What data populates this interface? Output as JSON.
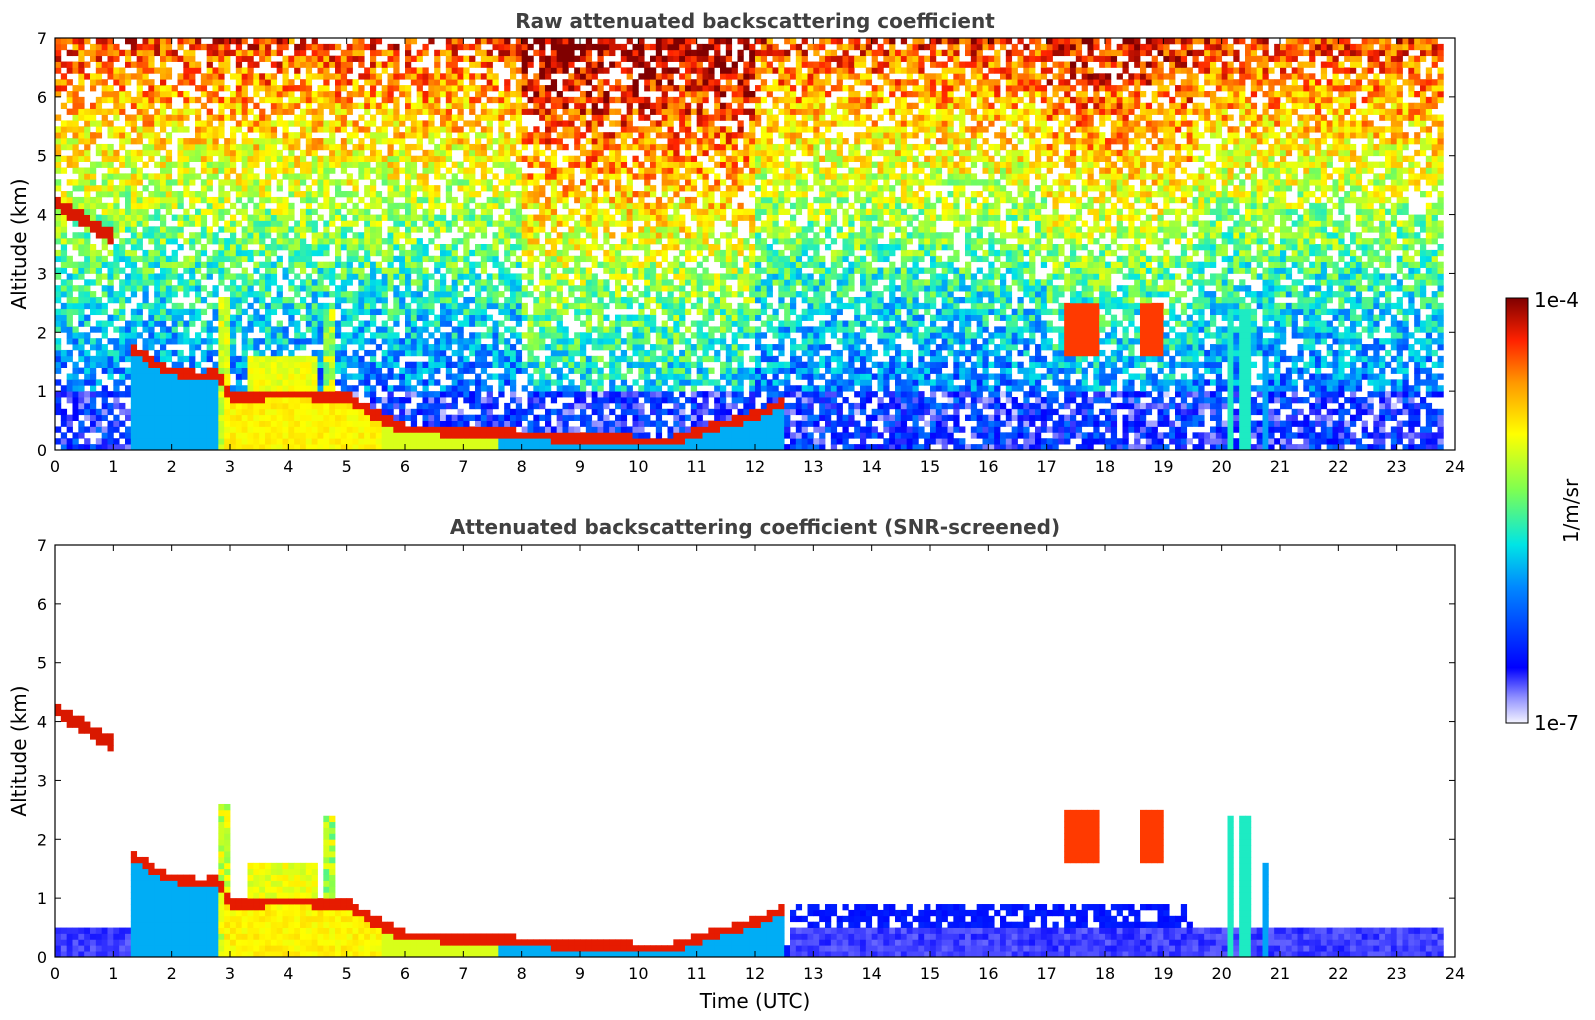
{
  "chart_data": [
    {
      "type": "heatmap",
      "title": "Raw attenuated backscattering coefficient",
      "ylabel": "Altitude (km)",
      "xlabel": "",
      "xlim": [
        0,
        24
      ],
      "ylim": [
        0,
        7
      ],
      "x_ticks": [
        0,
        1,
        2,
        3,
        4,
        5,
        6,
        7,
        8,
        9,
        10,
        11,
        12,
        13,
        14,
        15,
        16,
        17,
        18,
        19,
        20,
        21,
        22,
        23,
        24
      ],
      "y_ticks": [
        0,
        1,
        2,
        3,
        4,
        5,
        6,
        7
      ],
      "grid": false,
      "screened": false
    },
    {
      "type": "heatmap",
      "title": "Attenuated backscattering coefficient (SNR-screened)",
      "ylabel": "Altitude (km)",
      "xlabel": "Time (UTC)",
      "xlim": [
        0,
        24
      ],
      "ylim": [
        0,
        7
      ],
      "x_ticks": [
        0,
        1,
        2,
        3,
        4,
        5,
        6,
        7,
        8,
        9,
        10,
        11,
        12,
        13,
        14,
        15,
        16,
        17,
        18,
        19,
        20,
        21,
        22,
        23,
        24
      ],
      "y_ticks": [
        0,
        1,
        2,
        3,
        4,
        5,
        6,
        7
      ],
      "grid": false,
      "screened": true
    }
  ],
  "colorbar": {
    "label": "1/m/sr",
    "min_label": "1e-7",
    "max_label": "1e-4",
    "scale": "log",
    "colormap": [
      "#f4f4ff",
      "#0000ff",
      "#00ffff",
      "#7fff00",
      "#ffff00",
      "#ff8800",
      "#ff0000",
      "#800000"
    ]
  }
}
